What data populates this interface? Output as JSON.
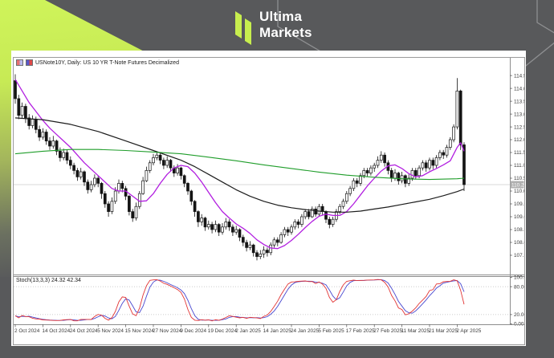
{
  "header": {
    "brand_line1": "Ultima",
    "brand_line2": "Markets"
  },
  "colors": {
    "page_bg": "#58595b",
    "accent_lime": "#c7ee4e",
    "card_bg": "#ffffff",
    "chart_border": "#9a9a9a",
    "candle_up_fill": "#ffffff",
    "candle_down_fill": "#141414",
    "candle_outline": "#141414",
    "ma_fast_purple": "#b21fe0",
    "ma_mid_black": "#1d1d1d",
    "ma_slow_green": "#1f9d2a",
    "stoch_main_red": "#e23434",
    "stoch_signal_blue": "#4747cf",
    "bid_line": "#d8d8d8",
    "price_badge_bg": "#b0b0b0",
    "axis_text": "#3a3a3a",
    "level_dotted": "#bbbbbb",
    "separator": "#8d8d8d",
    "hex_outline": "#8e8f91"
  },
  "chart_window": {
    "title": "USNote10Y, Daily:  US 10 YR T-Note Futures Decimalized",
    "stoch_label": "Stoch(13,3,3) 24.32 42.34",
    "title_icons": [
      {
        "left": "#e87070",
        "right": "#b9b9ef"
      },
      {
        "left": "#5858c8",
        "right": "#e04848"
      }
    ]
  },
  "chart_data": {
    "type": "candlestick+stochastic",
    "title": "USNote10Y, Daily: US 10 YR T-Note Futures Decimalized",
    "x_tick_step": 8,
    "x_tick_labels": [
      "2 Oct 2024",
      "14 Oct 2024",
      "24 Oct 2024",
      "5 Nov 2024",
      "15 Nov 2024",
      "27 Nov 2024",
      "9 Dec 2024",
      "19 Dec 2024",
      "2 Jan 2025",
      "14 Jan 2025",
      "24 Jan 2025",
      "5 Feb 2025",
      "17 Feb 2025",
      "27 Feb 2025",
      "11 Mar 2025",
      "21 Mar 2025",
      "2 Apr 2025"
    ],
    "price_ylim": [
      106.75,
      115.19
    ],
    "price_axis_labels": [
      "114.50",
      "114.00",
      "113.50",
      "113.00",
      "112.50",
      "112.00",
      "111.50",
      "111.00",
      "110.50",
      "110.00",
      "109.50",
      "109.00",
      "108.50",
      "108.00",
      "107.50"
    ],
    "current_price": 110.25,
    "current_price_label": "110.25",
    "candles": [
      [
        114.3,
        114.55,
        113.4,
        113.6
      ],
      [
        113.6,
        113.75,
        112.8,
        112.95
      ],
      [
        112.95,
        113.45,
        112.85,
        113.3
      ],
      [
        113.3,
        113.4,
        112.65,
        112.85
      ],
      [
        112.85,
        113.0,
        112.4,
        112.55
      ],
      [
        112.55,
        112.95,
        112.45,
        112.8
      ],
      [
        112.8,
        112.9,
        112.25,
        112.4
      ],
      [
        112.4,
        112.55,
        111.95,
        112.1
      ],
      [
        112.1,
        112.45,
        112.0,
        112.3
      ],
      [
        112.3,
        112.4,
        111.8,
        111.95
      ],
      [
        111.95,
        112.1,
        111.6,
        111.75
      ],
      [
        111.75,
        112.15,
        111.65,
        111.95
      ],
      [
        111.95,
        112.0,
        111.4,
        111.55
      ],
      [
        111.55,
        111.7,
        111.15,
        111.3
      ],
      [
        111.3,
        111.65,
        111.2,
        111.5
      ],
      [
        111.5,
        111.6,
        111.05,
        111.2
      ],
      [
        111.2,
        111.35,
        110.85,
        111.0
      ],
      [
        111.0,
        111.1,
        110.65,
        110.8
      ],
      [
        110.8,
        110.9,
        110.4,
        110.55
      ],
      [
        110.55,
        110.9,
        110.45,
        110.75
      ],
      [
        110.75,
        110.8,
        110.2,
        110.35
      ],
      [
        110.35,
        110.45,
        109.9,
        110.05
      ],
      [
        110.05,
        110.4,
        109.95,
        110.25
      ],
      [
        110.25,
        110.65,
        110.15,
        110.5
      ],
      [
        110.5,
        110.6,
        110.15,
        110.3
      ],
      [
        110.3,
        110.35,
        109.7,
        109.9
      ],
      [
        109.9,
        110.0,
        109.35,
        109.5
      ],
      [
        109.5,
        109.6,
        109.0,
        109.2
      ],
      [
        109.2,
        109.75,
        109.1,
        109.6
      ],
      [
        109.6,
        110.15,
        109.5,
        110.0
      ],
      [
        110.0,
        110.45,
        109.9,
        110.3
      ],
      [
        110.3,
        110.4,
        109.95,
        110.1
      ],
      [
        110.1,
        110.2,
        109.65,
        109.8
      ],
      [
        109.8,
        109.85,
        109.05,
        109.2
      ],
      [
        109.2,
        109.3,
        108.8,
        108.95
      ],
      [
        108.95,
        109.55,
        108.85,
        109.4
      ],
      [
        109.4,
        110.0,
        109.3,
        109.9
      ],
      [
        109.9,
        110.55,
        109.85,
        110.4
      ],
      [
        110.4,
        110.95,
        110.35,
        110.8
      ],
      [
        110.8,
        111.2,
        110.7,
        111.1
      ],
      [
        111.1,
        111.45,
        111.0,
        111.3
      ],
      [
        111.3,
        111.55,
        111.2,
        111.4
      ],
      [
        111.4,
        111.5,
        111.05,
        111.2
      ],
      [
        111.2,
        111.3,
        110.85,
        111.0
      ],
      [
        111.0,
        111.35,
        110.9,
        111.2
      ],
      [
        111.2,
        111.25,
        110.75,
        110.9
      ],
      [
        110.9,
        111.0,
        110.55,
        110.7
      ],
      [
        110.7,
        111.05,
        110.6,
        110.9
      ],
      [
        110.9,
        110.95,
        110.45,
        110.6
      ],
      [
        110.6,
        110.65,
        110.15,
        110.3
      ],
      [
        110.3,
        110.35,
        109.85,
        110.0
      ],
      [
        110.0,
        110.05,
        109.45,
        109.6
      ],
      [
        109.6,
        109.65,
        109.0,
        109.2
      ],
      [
        109.2,
        109.25,
        108.6,
        108.8
      ],
      [
        108.8,
        109.1,
        108.65,
        108.95
      ],
      [
        108.95,
        109.0,
        108.45,
        108.6
      ],
      [
        108.6,
        108.85,
        108.5,
        108.7
      ],
      [
        108.7,
        108.8,
        108.35,
        108.5
      ],
      [
        108.5,
        108.85,
        108.4,
        108.7
      ],
      [
        108.7,
        108.75,
        108.25,
        108.4
      ],
      [
        108.4,
        108.75,
        108.3,
        108.6
      ],
      [
        108.6,
        108.95,
        108.5,
        108.8
      ],
      [
        108.8,
        108.9,
        108.45,
        108.6
      ],
      [
        108.6,
        108.7,
        108.25,
        108.4
      ],
      [
        108.4,
        108.65,
        108.3,
        108.5
      ],
      [
        108.5,
        108.55,
        108.05,
        108.2
      ],
      [
        108.2,
        108.3,
        107.85,
        108.0
      ],
      [
        108.0,
        108.1,
        107.65,
        107.8
      ],
      [
        107.8,
        108.05,
        107.7,
        107.9
      ],
      [
        107.9,
        107.95,
        107.45,
        107.6
      ],
      [
        107.6,
        107.7,
        107.3,
        107.45
      ],
      [
        107.45,
        107.7,
        107.35,
        107.55
      ],
      [
        107.55,
        107.85,
        107.4,
        107.7
      ],
      [
        107.7,
        107.8,
        107.45,
        107.6
      ],
      [
        107.6,
        108.0,
        107.5,
        107.9
      ],
      [
        107.9,
        108.2,
        107.8,
        108.1
      ],
      [
        108.1,
        108.2,
        107.85,
        108.0
      ],
      [
        108.0,
        108.4,
        107.95,
        108.3
      ],
      [
        108.3,
        108.6,
        108.2,
        108.5
      ],
      [
        108.5,
        108.6,
        108.25,
        108.4
      ],
      [
        108.4,
        108.7,
        108.3,
        108.6
      ],
      [
        108.6,
        108.9,
        108.5,
        108.8
      ],
      [
        108.8,
        108.9,
        108.55,
        108.7
      ],
      [
        108.7,
        109.1,
        108.6,
        109.0
      ],
      [
        109.0,
        109.3,
        108.9,
        109.2
      ],
      [
        109.2,
        109.3,
        108.9,
        109.0
      ],
      [
        109.0,
        109.4,
        108.95,
        109.3
      ],
      [
        109.3,
        109.4,
        109.0,
        109.1
      ],
      [
        109.1,
        109.5,
        109.0,
        109.4
      ],
      [
        109.4,
        109.5,
        109.05,
        109.2
      ],
      [
        109.2,
        109.25,
        108.75,
        108.9
      ],
      [
        108.9,
        109.0,
        108.55,
        108.7
      ],
      [
        108.7,
        109.0,
        108.6,
        108.9
      ],
      [
        108.9,
        109.3,
        108.8,
        109.2
      ],
      [
        109.2,
        109.5,
        109.1,
        109.4
      ],
      [
        109.4,
        109.7,
        109.3,
        109.6
      ],
      [
        109.6,
        110.0,
        109.5,
        109.9
      ],
      [
        109.9,
        110.2,
        109.8,
        110.1
      ],
      [
        110.1,
        110.5,
        110.0,
        110.4
      ],
      [
        110.4,
        110.5,
        110.15,
        110.3
      ],
      [
        110.3,
        110.7,
        110.2,
        110.6
      ],
      [
        110.6,
        110.9,
        110.5,
        110.8
      ],
      [
        110.8,
        110.9,
        110.55,
        110.7
      ],
      [
        110.7,
        111.0,
        110.6,
        110.9
      ],
      [
        110.9,
        111.1,
        110.75,
        111.0
      ],
      [
        111.0,
        111.35,
        110.9,
        111.2
      ],
      [
        111.2,
        111.55,
        111.1,
        111.4
      ],
      [
        111.4,
        111.5,
        110.95,
        111.1
      ],
      [
        111.1,
        111.2,
        110.65,
        110.8
      ],
      [
        110.8,
        110.9,
        110.35,
        110.5
      ],
      [
        110.5,
        110.85,
        110.4,
        110.7
      ],
      [
        110.7,
        110.75,
        110.25,
        110.4
      ],
      [
        110.4,
        110.75,
        110.3,
        110.6
      ],
      [
        110.6,
        110.65,
        110.15,
        110.3
      ],
      [
        110.3,
        110.65,
        110.2,
        110.5
      ],
      [
        110.5,
        110.9,
        110.4,
        110.8
      ],
      [
        110.8,
        110.9,
        110.45,
        110.6
      ],
      [
        110.6,
        111.0,
        110.5,
        110.9
      ],
      [
        110.9,
        111.2,
        110.8,
        111.1
      ],
      [
        111.1,
        111.2,
        110.75,
        110.9
      ],
      [
        110.9,
        111.3,
        110.8,
        111.2
      ],
      [
        111.2,
        111.3,
        110.85,
        111.0
      ],
      [
        111.0,
        111.4,
        110.9,
        111.3
      ],
      [
        111.3,
        111.6,
        111.2,
        111.5
      ],
      [
        111.5,
        111.6,
        111.25,
        111.4
      ],
      [
        111.4,
        111.8,
        111.3,
        111.7
      ],
      [
        111.7,
        112.1,
        111.6,
        112.0
      ],
      [
        112.0,
        112.6,
        111.9,
        112.5
      ],
      [
        112.5,
        114.4,
        112.4,
        113.9
      ],
      [
        113.9,
        113.95,
        111.6,
        111.8
      ],
      [
        111.8,
        111.9,
        110.0,
        110.25
      ]
    ],
    "overlays": [
      {
        "name": "ma-fast-purple-line",
        "color": "#b21fe0",
        "width": 1.3,
        "points": [
          [
            0,
            114.35
          ],
          [
            2,
            113.9
          ],
          [
            4,
            113.45
          ],
          [
            6,
            113.1
          ],
          [
            8,
            112.75
          ],
          [
            10,
            112.45
          ],
          [
            12,
            112.2
          ],
          [
            14,
            111.95
          ],
          [
            16,
            111.7
          ],
          [
            18,
            111.4
          ],
          [
            20,
            111.1
          ],
          [
            22,
            110.85
          ],
          [
            24,
            110.6
          ],
          [
            26,
            110.35
          ],
          [
            28,
            110.1
          ],
          [
            30,
            110.0
          ],
          [
            32,
            110.0
          ],
          [
            34,
            109.8
          ],
          [
            36,
            109.6
          ],
          [
            38,
            109.62
          ],
          [
            40,
            109.9
          ],
          [
            42,
            110.3
          ],
          [
            44,
            110.65
          ],
          [
            46,
            110.9
          ],
          [
            48,
            111.0
          ],
          [
            50,
            110.95
          ],
          [
            52,
            110.7
          ],
          [
            54,
            110.35
          ],
          [
            56,
            109.95
          ],
          [
            58,
            109.55
          ],
          [
            60,
            109.2
          ],
          [
            62,
            108.95
          ],
          [
            64,
            108.72
          ],
          [
            66,
            108.55
          ],
          [
            68,
            108.35
          ],
          [
            70,
            108.1
          ],
          [
            72,
            107.92
          ],
          [
            74,
            107.78
          ],
          [
            76,
            107.76
          ],
          [
            78,
            107.88
          ],
          [
            80,
            108.08
          ],
          [
            82,
            108.32
          ],
          [
            84,
            108.58
          ],
          [
            86,
            108.82
          ],
          [
            88,
            109.02
          ],
          [
            90,
            109.1
          ],
          [
            92,
            109.05
          ],
          [
            94,
            109.05
          ],
          [
            96,
            109.2
          ],
          [
            98,
            109.5
          ],
          [
            100,
            109.85
          ],
          [
            102,
            110.2
          ],
          [
            104,
            110.5
          ],
          [
            106,
            110.78
          ],
          [
            108,
            110.98
          ],
          [
            110,
            111.02
          ],
          [
            112,
            110.88
          ],
          [
            114,
            110.68
          ],
          [
            116,
            110.55
          ],
          [
            118,
            110.6
          ],
          [
            120,
            110.75
          ],
          [
            122,
            110.88
          ],
          [
            124,
            111.02
          ],
          [
            126,
            111.18
          ],
          [
            128,
            111.7
          ],
          [
            129,
            111.88
          ],
          [
            130,
            111.55
          ]
        ]
      },
      {
        "name": "ma-mid-black-line",
        "color": "#1d1d1d",
        "width": 1.2,
        "points": [
          [
            0,
            112.85
          ],
          [
            8,
            112.78
          ],
          [
            16,
            112.6
          ],
          [
            24,
            112.32
          ],
          [
            32,
            111.95
          ],
          [
            40,
            111.58
          ],
          [
            48,
            111.2
          ],
          [
            52,
            110.95
          ],
          [
            56,
            110.65
          ],
          [
            60,
            110.35
          ],
          [
            64,
            110.05
          ],
          [
            68,
            109.8
          ],
          [
            72,
            109.6
          ],
          [
            76,
            109.45
          ],
          [
            80,
            109.35
          ],
          [
            84,
            109.28
          ],
          [
            88,
            109.22
          ],
          [
            92,
            109.18
          ],
          [
            96,
            109.18
          ],
          [
            100,
            109.22
          ],
          [
            104,
            109.3
          ],
          [
            108,
            109.38
          ],
          [
            112,
            109.48
          ],
          [
            116,
            109.58
          ],
          [
            120,
            109.68
          ],
          [
            124,
            109.82
          ],
          [
            128,
            109.98
          ],
          [
            130,
            110.08
          ]
        ]
      },
      {
        "name": "ma-slow-green-line",
        "color": "#1f9d2a",
        "width": 1.1,
        "points": [
          [
            0,
            111.45
          ],
          [
            8,
            111.55
          ],
          [
            16,
            111.62
          ],
          [
            24,
            111.62
          ],
          [
            32,
            111.58
          ],
          [
            40,
            111.52
          ],
          [
            48,
            111.45
          ],
          [
            56,
            111.32
          ],
          [
            64,
            111.18
          ],
          [
            72,
            111.02
          ],
          [
            80,
            110.88
          ],
          [
            88,
            110.74
          ],
          [
            96,
            110.62
          ],
          [
            104,
            110.54
          ],
          [
            112,
            110.48
          ],
          [
            120,
            110.45
          ],
          [
            128,
            110.48
          ],
          [
            130,
            110.5
          ]
        ]
      }
    ],
    "stochastic": {
      "label": "Stoch(13,3,3)",
      "main_value": 24.32,
      "signal_value": 42.34,
      "k_period": 13,
      "slowing": 3,
      "d_period": 3,
      "range": [
        0,
        100
      ],
      "levels": [
        80,
        20
      ]
    },
    "stoch_axis_labels": [
      {
        "v": 100,
        "t": "100.00"
      },
      {
        "v": 80,
        "t": "80.00"
      },
      {
        "v": 20,
        "t": "20.00"
      },
      {
        "v": 0,
        "t": "0.00"
      }
    ]
  }
}
